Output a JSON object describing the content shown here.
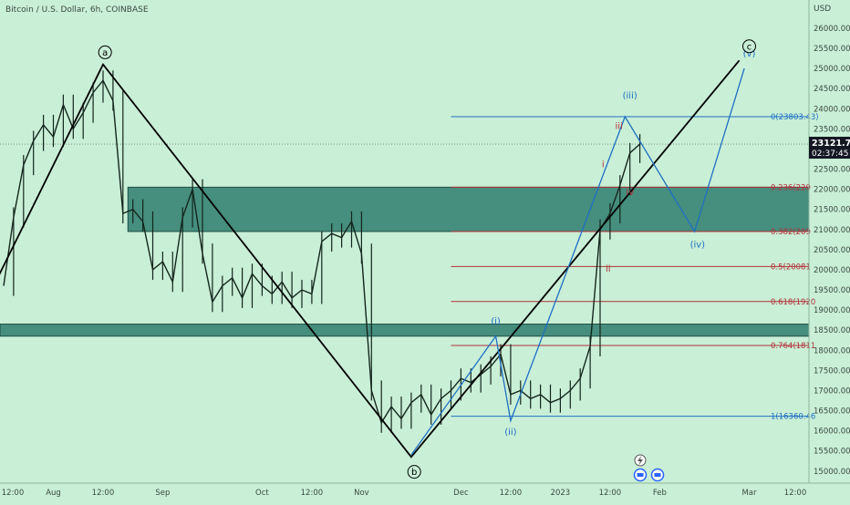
{
  "header": {
    "title": "Bitcoin / U.S. Dollar, 6h, COINBASE"
  },
  "axis": {
    "currency": "USD",
    "price_ticks": [
      15000,
      15500,
      16000,
      16500,
      17000,
      17500,
      18000,
      18500,
      19000,
      19500,
      20000,
      20500,
      21000,
      21500,
      22000,
      22500,
      23000,
      23500,
      24000,
      24500,
      25000,
      25500,
      26000
    ],
    "time_labels": [
      {
        "label": "12:00",
        "t": 0
      },
      {
        "label": "Aug",
        "t": 5
      },
      {
        "label": "12:00",
        "t": 10
      },
      {
        "label": "Sep",
        "t": 16
      },
      {
        "label": "Oct",
        "t": 26
      },
      {
        "label": "12:00",
        "t": 31
      },
      {
        "label": "Nov",
        "t": 36
      },
      {
        "label": "Dec",
        "t": 46
      },
      {
        "label": "12:00",
        "t": 51
      },
      {
        "label": "2023",
        "t": 56
      },
      {
        "label": "12:00",
        "t": 61
      },
      {
        "label": "Feb",
        "t": 66
      },
      {
        "label": "Mar",
        "t": 75
      },
      {
        "label": "12:00",
        "t": 80
      }
    ]
  },
  "last_price": {
    "price": 23121.75,
    "value": "23121.75",
    "countdown": "02:37:45"
  },
  "chart_data": {
    "type": "line",
    "title": "Bitcoin / U.S. Dollar, 6h, COINBASE",
    "ylim": [
      14700,
      26700
    ],
    "xlim": [
      0,
      80
    ],
    "series_close": {
      "t": [
        0,
        1,
        2,
        3,
        4,
        5,
        6,
        7,
        8,
        9,
        10,
        11,
        12,
        13,
        14,
        15,
        16,
        17,
        18,
        19,
        20,
        21,
        22,
        23,
        24,
        25,
        26,
        27,
        28,
        29,
        30,
        31,
        32,
        33,
        34,
        35,
        36,
        37,
        38,
        39,
        40,
        41,
        42,
        43,
        44,
        45,
        46,
        47,
        48,
        49,
        50,
        51,
        52,
        53,
        54,
        55,
        56,
        57,
        58,
        59,
        60,
        61,
        62,
        63,
        64
      ],
      "price": [
        19600,
        21300,
        22600,
        23200,
        23600,
        23300,
        24100,
        23500,
        23900,
        24400,
        24700,
        24200,
        21400,
        21500,
        21200,
        20000,
        20200,
        19700,
        21300,
        22000,
        20400,
        19200,
        19600,
        19800,
        19300,
        19900,
        19600,
        19400,
        19700,
        19300,
        19500,
        19400,
        20700,
        20900,
        20800,
        21200,
        20400,
        17000,
        16200,
        16600,
        16300,
        16700,
        16900,
        16400,
        16800,
        17000,
        17300,
        17200,
        17400,
        17600,
        17900,
        16900,
        17000,
        16800,
        16900,
        16700,
        16800,
        17000,
        17300,
        18100,
        21000,
        21400,
        22100,
        22900,
        23120
      ]
    },
    "zones": [
      {
        "from": 20950,
        "to": 22050
      },
      {
        "from": 18350,
        "to": 18650
      }
    ],
    "fib_levels": [
      {
        "label": "0(23803.43)",
        "price": 23803,
        "color": "#1f6fc4"
      },
      {
        "label": "0.236(220",
        "price": 22050,
        "color": "#b3303a"
      },
      {
        "label": "0.382(209",
        "price": 20950,
        "color": "#b3303a"
      },
      {
        "label": "0.5(20081",
        "price": 20081,
        "color": "#b3303a"
      },
      {
        "label": "0.618(1920",
        "price": 19210,
        "color": "#b3303a"
      },
      {
        "label": "0.764(1811",
        "price": 18120,
        "color": "#b3303a"
      },
      {
        "label": "1(16360.46",
        "price": 16360,
        "color": "#1f6fc4"
      }
    ],
    "abc_path": [
      {
        "t": -1,
        "price": 19600
      },
      {
        "t": 10,
        "price": 25100
      },
      {
        "t": 41,
        "price": 15350
      },
      {
        "t": 74,
        "price": 25200
      }
    ],
    "wave_path": [
      {
        "t": 41,
        "price": 15400
      },
      {
        "t": 49.5,
        "price": 18350
      },
      {
        "t": 51,
        "price": 16250
      },
      {
        "t": 62.5,
        "price": 23803
      },
      {
        "t": 69.5,
        "price": 20950
      },
      {
        "t": 74.5,
        "price": 25000
      }
    ],
    "wave_labels": [
      {
        "text": "(i)",
        "t": 49.5,
        "price": 18650,
        "color": "#1f6fc4"
      },
      {
        "text": "(ii)",
        "t": 51,
        "price": 15900,
        "color": "#1f6fc4"
      },
      {
        "text": "(iii)",
        "t": 63,
        "price": 24250,
        "color": "#1f6fc4"
      },
      {
        "text": "(iv)",
        "t": 69.8,
        "price": 20550,
        "color": "#1f6fc4"
      },
      {
        "text": "(v)",
        "t": 75,
        "price": 25300,
        "color": "#1f6fc4"
      },
      {
        "text": "i",
        "t": 60.3,
        "price": 22550,
        "color": "#b3303a"
      },
      {
        "text": "ii",
        "t": 60.8,
        "price": 19950,
        "color": "#b3303a"
      },
      {
        "text": "iii",
        "t": 61.9,
        "price": 23500,
        "color": "#b3303a"
      },
      {
        "text": "iv",
        "t": 63,
        "price": 21850,
        "color": "#b3303a"
      }
    ],
    "circle_labels": [
      {
        "text": "a",
        "t": 10.2,
        "price": 25400
      },
      {
        "text": "b",
        "t": 41.3,
        "price": 14980
      },
      {
        "text": "c",
        "t": 75,
        "price": 25550
      }
    ]
  }
}
